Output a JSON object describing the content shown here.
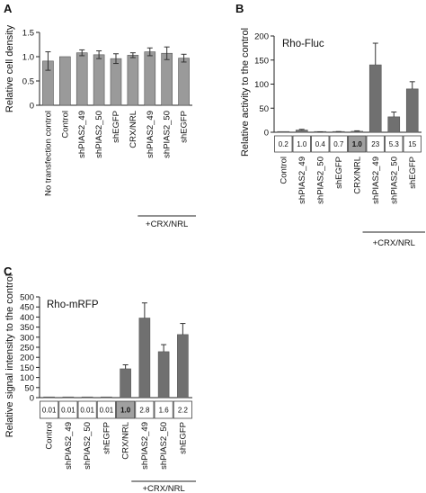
{
  "colors": {
    "bar_light": "#9a9a9a",
    "bar_dark": "#707070",
    "highlight_box": "#a0a0a0",
    "axis": "#222222"
  },
  "chart_data": [
    {
      "type": "bar",
      "panel": "A",
      "title": "",
      "xlabel": "",
      "ylabel": "Relative cell density",
      "ylim": [
        0,
        1.5
      ],
      "yticks": [
        "0",
        "0.5",
        "1.0",
        "1.5"
      ],
      "categories": [
        "No transfection control",
        "Control",
        "shPIAS2_49",
        "shPIAS2_50",
        "shEGFP",
        "CRX/NRL",
        "shPIAS2_49",
        "shPIAS2_50",
        "shEGFP"
      ],
      "values": [
        0.91,
        1.0,
        1.08,
        1.04,
        0.96,
        1.03,
        1.1,
        1.07,
        0.97
      ],
      "errors": [
        0.19,
        0.0,
        0.06,
        0.08,
        0.1,
        0.05,
        0.08,
        0.13,
        0.08
      ],
      "group_label": "+CRX/NRL",
      "group_start": 6,
      "group_end": 8
    },
    {
      "type": "bar",
      "panel": "B",
      "title": "Rho-Fluc",
      "xlabel": "",
      "ylabel": "Relative activity to the control",
      "ylim": [
        0,
        200
      ],
      "yticks": [
        "0",
        "50",
        "100",
        "150",
        "200"
      ],
      "categories": [
        "Control",
        "shPIAS2_49",
        "shPIAS2_50",
        "shEGFP",
        "CRX/NRL",
        "shPIAS2_49",
        "shPIAS2_50",
        "shEGFP"
      ],
      "values": [
        0.2,
        4.5,
        0.4,
        1.0,
        2.0,
        140,
        32,
        90
      ],
      "errors": [
        0,
        1.5,
        0.4,
        0.4,
        1.0,
        45,
        10,
        15
      ],
      "box_values": [
        "0.2",
        "1.0",
        "0.4",
        "0.7",
        "1.0",
        "23",
        "5.3",
        "15"
      ],
      "highlight_index": 4,
      "group_label": "+CRX/NRL",
      "group_start": 5,
      "group_end": 7
    },
    {
      "type": "bar",
      "panel": "C",
      "title": "Rho-mRFP",
      "xlabel": "",
      "ylabel": "Relative signal intensity to the control",
      "ylim": [
        0,
        500
      ],
      "yticks": [
        "0",
        "50",
        "100",
        "150",
        "200",
        "250",
        "300",
        "350",
        "400",
        "450",
        "500"
      ],
      "categories": [
        "Control",
        "shPIAS2_49",
        "shPIAS2_50",
        "shEGFP",
        "CRX/NRL",
        "shPIAS2_49",
        "shPIAS2_50",
        "shEGFP"
      ],
      "values": [
        1,
        1,
        1,
        1,
        143,
        395,
        228,
        313
      ],
      "errors": [
        0,
        0,
        0,
        0,
        20,
        75,
        35,
        55
      ],
      "box_values": [
        "0.01",
        "0.01",
        "0.01",
        "0.01",
        "1.0",
        "2.8",
        "1.6",
        "2.2"
      ],
      "highlight_index": 4,
      "group_label": "+CRX/NRL",
      "group_start": 5,
      "group_end": 7
    }
  ]
}
